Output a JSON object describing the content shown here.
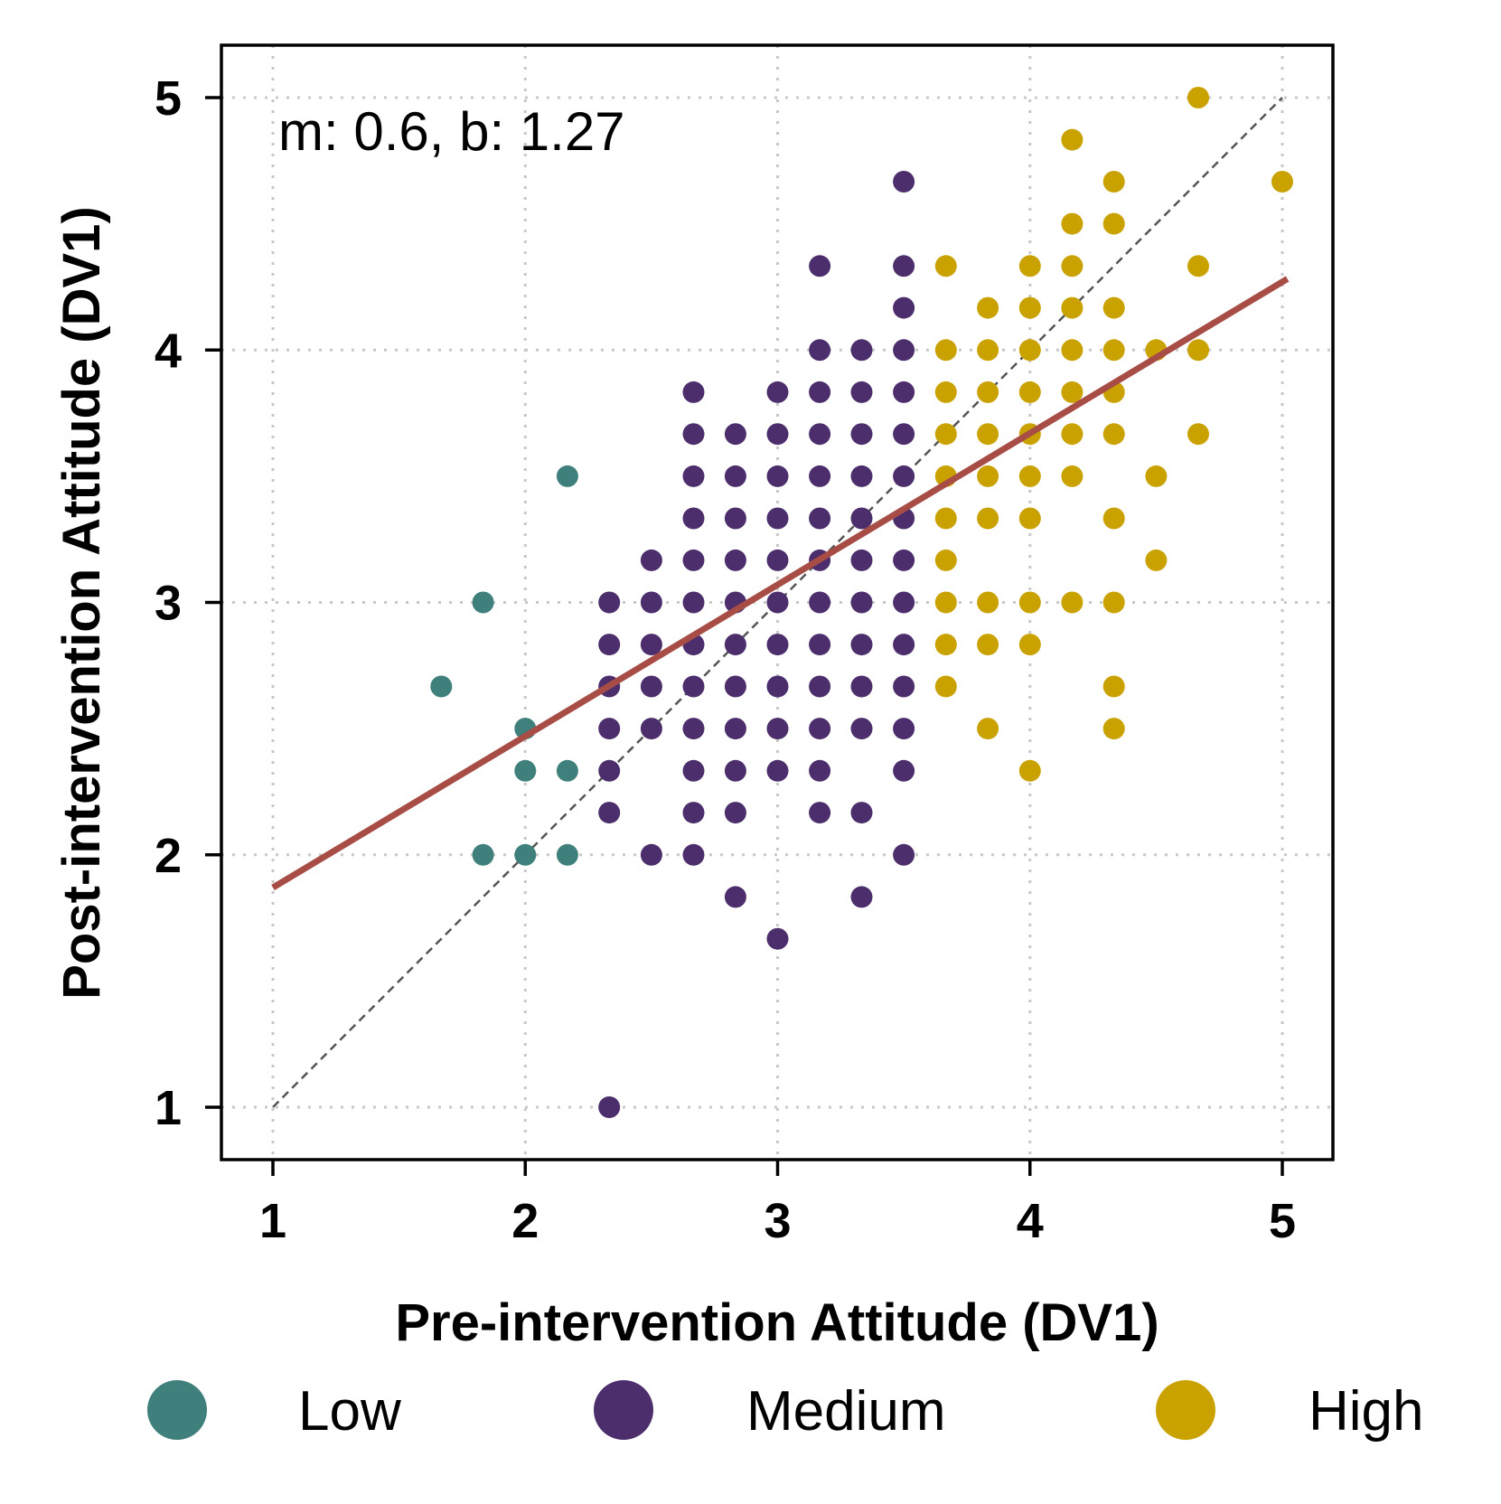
{
  "chart_data": {
    "type": "scatter",
    "xlabel": "Pre-intervention Attitude (DV1)",
    "ylabel": "Post-intervention Attitude (DV1)",
    "xlim": [
      0.8,
      5.2
    ],
    "ylim": [
      0.8,
      5.2
    ],
    "xticks": [
      "1",
      "2",
      "3",
      "4",
      "5"
    ],
    "yticks": [
      "1",
      "2",
      "3",
      "4",
      "5"
    ],
    "grid": true,
    "annotation": "m: 0.6, b: 1.27",
    "fit_line": {
      "slope": 0.6,
      "intercept": 1.27,
      "x_range": [
        1,
        5.02
      ],
      "color": "#a84c46"
    },
    "identity_line": {
      "from": [
        1,
        1
      ],
      "to": [
        5,
        5
      ],
      "color": "#555555"
    },
    "legend": {
      "position": "bottom",
      "entries": [
        "Low",
        "Medium",
        "High"
      ]
    },
    "series": [
      {
        "name": "Low",
        "color": "#3f7f7c",
        "points": [
          [
            1.667,
            2.667
          ],
          [
            1.833,
            3.0
          ],
          [
            1.833,
            2.0
          ],
          [
            2.0,
            2.5
          ],
          [
            2.0,
            2.333
          ],
          [
            2.0,
            2.0
          ],
          [
            2.167,
            3.5
          ],
          [
            2.167,
            2.333
          ],
          [
            2.167,
            2.0
          ]
        ]
      },
      {
        "name": "Medium",
        "color": "#4b2e6b",
        "points": [
          [
            2.333,
            3.0
          ],
          [
            2.333,
            2.833
          ],
          [
            2.333,
            2.667
          ],
          [
            2.333,
            2.5
          ],
          [
            2.333,
            2.333
          ],
          [
            2.333,
            2.167
          ],
          [
            2.333,
            1.0
          ],
          [
            2.5,
            3.167
          ],
          [
            2.5,
            3.0
          ],
          [
            2.5,
            2.833
          ],
          [
            2.5,
            2.667
          ],
          [
            2.5,
            2.5
          ],
          [
            2.5,
            2.0
          ],
          [
            2.667,
            3.833
          ],
          [
            2.667,
            3.667
          ],
          [
            2.667,
            3.5
          ],
          [
            2.667,
            3.333
          ],
          [
            2.667,
            3.167
          ],
          [
            2.667,
            3.0
          ],
          [
            2.667,
            2.833
          ],
          [
            2.667,
            2.667
          ],
          [
            2.667,
            2.5
          ],
          [
            2.667,
            2.333
          ],
          [
            2.667,
            2.167
          ],
          [
            2.667,
            2.0
          ],
          [
            2.833,
            3.667
          ],
          [
            2.833,
            3.5
          ],
          [
            2.833,
            3.333
          ],
          [
            2.833,
            3.167
          ],
          [
            2.833,
            3.0
          ],
          [
            2.833,
            2.833
          ],
          [
            2.833,
            2.667
          ],
          [
            2.833,
            2.5
          ],
          [
            2.833,
            2.333
          ],
          [
            2.833,
            2.167
          ],
          [
            2.833,
            1.833
          ],
          [
            3.0,
            3.833
          ],
          [
            3.0,
            3.667
          ],
          [
            3.0,
            3.5
          ],
          [
            3.0,
            3.333
          ],
          [
            3.0,
            3.167
          ],
          [
            3.0,
            3.0
          ],
          [
            3.0,
            2.833
          ],
          [
            3.0,
            2.667
          ],
          [
            3.0,
            2.5
          ],
          [
            3.0,
            2.333
          ],
          [
            3.0,
            1.667
          ],
          [
            3.167,
            4.333
          ],
          [
            3.167,
            4.0
          ],
          [
            3.167,
            3.833
          ],
          [
            3.167,
            3.667
          ],
          [
            3.167,
            3.5
          ],
          [
            3.167,
            3.333
          ],
          [
            3.167,
            3.167
          ],
          [
            3.167,
            3.0
          ],
          [
            3.167,
            2.833
          ],
          [
            3.167,
            2.667
          ],
          [
            3.167,
            2.5
          ],
          [
            3.167,
            2.333
          ],
          [
            3.167,
            2.167
          ],
          [
            3.333,
            4.0
          ],
          [
            3.333,
            3.833
          ],
          [
            3.333,
            3.667
          ],
          [
            3.333,
            3.5
          ],
          [
            3.333,
            3.333
          ],
          [
            3.333,
            3.167
          ],
          [
            3.333,
            3.0
          ],
          [
            3.333,
            2.833
          ],
          [
            3.333,
            2.667
          ],
          [
            3.333,
            2.5
          ],
          [
            3.333,
            2.167
          ],
          [
            3.333,
            1.833
          ],
          [
            3.5,
            4.667
          ],
          [
            3.5,
            4.333
          ],
          [
            3.5,
            4.167
          ],
          [
            3.5,
            4.0
          ],
          [
            3.5,
            3.833
          ],
          [
            3.5,
            3.667
          ],
          [
            3.5,
            3.5
          ],
          [
            3.5,
            3.333
          ],
          [
            3.5,
            3.167
          ],
          [
            3.5,
            3.0
          ],
          [
            3.5,
            2.833
          ],
          [
            3.5,
            2.667
          ],
          [
            3.5,
            2.5
          ],
          [
            3.5,
            2.333
          ],
          [
            3.5,
            2.0
          ]
        ]
      },
      {
        "name": "High",
        "color": "#c9a200",
        "points": [
          [
            3.667,
            4.333
          ],
          [
            3.667,
            4.0
          ],
          [
            3.667,
            3.833
          ],
          [
            3.667,
            3.667
          ],
          [
            3.667,
            3.5
          ],
          [
            3.667,
            3.333
          ],
          [
            3.667,
            3.167
          ],
          [
            3.667,
            3.0
          ],
          [
            3.667,
            2.833
          ],
          [
            3.667,
            2.667
          ],
          [
            3.833,
            4.167
          ],
          [
            3.833,
            4.0
          ],
          [
            3.833,
            3.833
          ],
          [
            3.833,
            3.667
          ],
          [
            3.833,
            3.5
          ],
          [
            3.833,
            3.333
          ],
          [
            3.833,
            3.0
          ],
          [
            3.833,
            2.833
          ],
          [
            3.833,
            2.5
          ],
          [
            4.0,
            4.333
          ],
          [
            4.0,
            4.167
          ],
          [
            4.0,
            4.0
          ],
          [
            4.0,
            3.833
          ],
          [
            4.0,
            3.667
          ],
          [
            4.0,
            3.5
          ],
          [
            4.0,
            3.333
          ],
          [
            4.0,
            3.0
          ],
          [
            4.0,
            2.833
          ],
          [
            4.0,
            2.333
          ],
          [
            4.167,
            4.833
          ],
          [
            4.167,
            4.5
          ],
          [
            4.167,
            4.333
          ],
          [
            4.167,
            4.167
          ],
          [
            4.167,
            4.0
          ],
          [
            4.167,
            3.833
          ],
          [
            4.167,
            3.667
          ],
          [
            4.167,
            3.5
          ],
          [
            4.167,
            3.0
          ],
          [
            4.333,
            4.667
          ],
          [
            4.333,
            4.5
          ],
          [
            4.333,
            4.167
          ],
          [
            4.333,
            4.0
          ],
          [
            4.333,
            3.833
          ],
          [
            4.333,
            3.667
          ],
          [
            4.333,
            3.333
          ],
          [
            4.333,
            3.0
          ],
          [
            4.333,
            2.667
          ],
          [
            4.333,
            2.5
          ],
          [
            4.5,
            4.0
          ],
          [
            4.5,
            3.5
          ],
          [
            4.5,
            3.167
          ],
          [
            4.667,
            5.0
          ],
          [
            4.667,
            4.333
          ],
          [
            4.667,
            4.0
          ],
          [
            4.667,
            3.667
          ],
          [
            5.0,
            4.667
          ]
        ]
      }
    ]
  }
}
